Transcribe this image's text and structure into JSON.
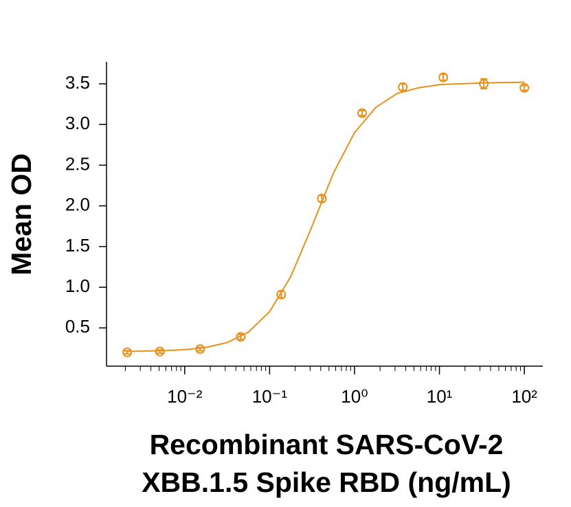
{
  "chart_data": {
    "type": "scatter",
    "x_label": [
      "Recombinant SARS-CoV-2",
      "XBB.1.5 Spike RBD (ng/mL)"
    ],
    "y_label": "Mean OD",
    "xscale": "log",
    "xlim": [
      0.0012,
      165
    ],
    "ylim": [
      0.03,
      3.77
    ],
    "xticks": [
      {
        "value": 0.01,
        "label": "10⁻²"
      },
      {
        "value": 0.1,
        "label": "10⁻¹"
      },
      {
        "value": 1,
        "label": "10⁰"
      },
      {
        "value": 10,
        "label": "10¹"
      },
      {
        "value": 100,
        "label": "10²"
      }
    ],
    "yticks": [
      0.5,
      {
        "value": 1,
        "label": "1.0"
      },
      1.5,
      {
        "value": 2,
        "label": "2.0"
      },
      2.5,
      {
        "value": 3,
        "label": "3.0"
      },
      3.5
    ],
    "grid": false,
    "series": [
      {
        "type": "scatter",
        "color": "#e8901a",
        "x": [
          0.0021,
          0.0051,
          0.0152,
          0.0457,
          0.137,
          0.412,
          1.23,
          3.7,
          11.1,
          33.3,
          100
        ],
        "values": [
          0.2,
          0.21,
          0.24,
          0.39,
          0.91,
          2.09,
          3.14,
          3.46,
          3.58,
          3.5,
          3.45
        ],
        "errors": [
          0.02,
          0.02,
          0.02,
          0.03,
          0.04,
          0.04,
          0.03,
          0.04,
          0.04,
          0.06,
          0.03
        ]
      },
      {
        "type": "line",
        "color": "#e8901a",
        "x": [
          0.002,
          0.00316,
          0.00562,
          0.01,
          0.0178,
          0.0316,
          0.0562,
          0.1,
          0.178,
          0.316,
          0.562,
          1,
          1.78,
          3.16,
          5.62,
          10,
          31.6,
          100
        ],
        "values": [
          0.212,
          0.215,
          0.22,
          0.233,
          0.26,
          0.32,
          0.448,
          0.7,
          1.135,
          1.75,
          2.4,
          2.9,
          3.21,
          3.38,
          3.45,
          3.49,
          3.51,
          3.52
        ]
      }
    ]
  }
}
